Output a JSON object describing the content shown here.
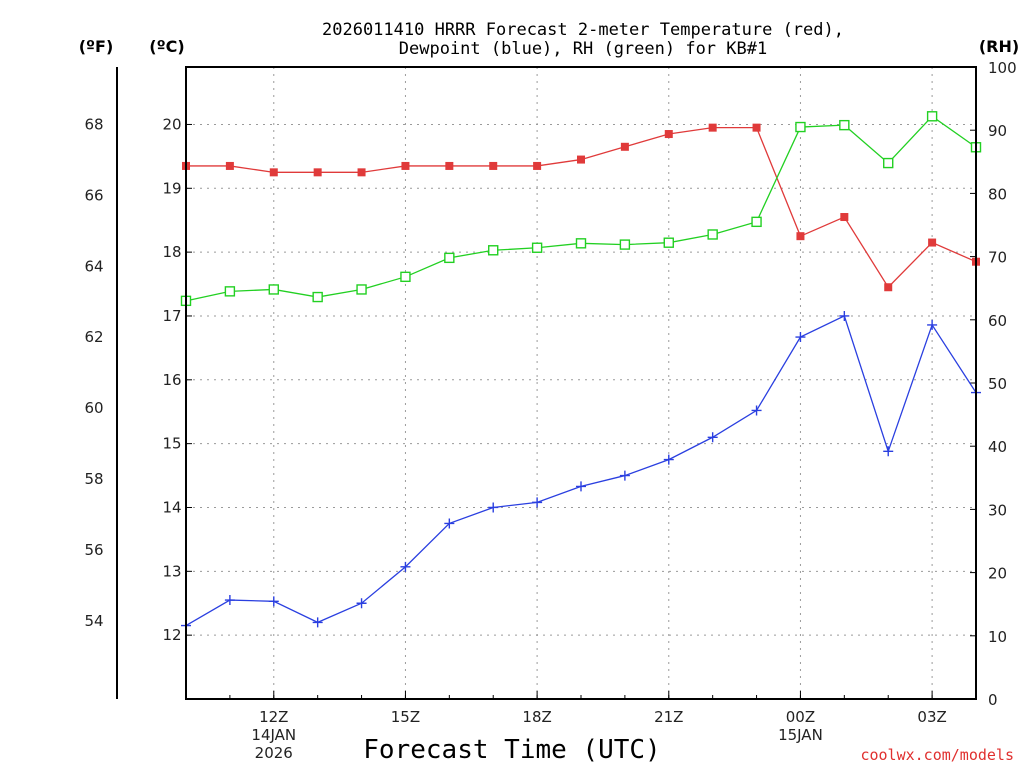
{
  "chart_data": {
    "type": "line",
    "title_lines": [
      "2026011410 HRRR Forecast 2-meter Temperature (red),",
      "Dewpoint (blue), RH (green) for KB#1"
    ],
    "units": {
      "fahrenheit": "(ºF)",
      "celsius": "(ºC)",
      "rh": "(RH)"
    },
    "xlabel": "Forecast Time (UTC)",
    "credit": "coolwx.com/models",
    "x_hours": [
      10,
      11,
      12,
      13,
      14,
      15,
      16,
      17,
      18,
      19,
      20,
      21,
      22,
      23,
      24,
      25,
      26,
      27,
      28
    ],
    "xlim": [
      10,
      28
    ],
    "x_ticks": [
      {
        "hour": 12,
        "lines": [
          "12Z",
          "14JAN",
          "2026"
        ]
      },
      {
        "hour": 15,
        "lines": [
          "15Z"
        ]
      },
      {
        "hour": 18,
        "lines": [
          "18Z"
        ]
      },
      {
        "hour": 21,
        "lines": [
          "21Z"
        ]
      },
      {
        "hour": 24,
        "lines": [
          "00Z",
          "15JAN"
        ]
      },
      {
        "hour": 27,
        "lines": [
          "03Z"
        ]
      }
    ],
    "ylim_celsius": [
      11.0,
      20.9
    ],
    "celsius_ticks": [
      "12",
      "13",
      "14",
      "15",
      "16",
      "17",
      "18",
      "19",
      "20"
    ],
    "fahrenheit_ticks": [
      "54",
      "56",
      "58",
      "60",
      "62",
      "64",
      "66",
      "68"
    ],
    "ylim_rh": [
      0,
      100
    ],
    "rh_ticks": [
      "0",
      "10",
      "20",
      "30",
      "40",
      "50",
      "60",
      "70",
      "80",
      "90",
      "100"
    ],
    "series": [
      {
        "name": "Temperature",
        "color": "#e03a3a",
        "marker": "filled-square",
        "values": [
          19.35,
          19.35,
          19.25,
          19.25,
          19.25,
          19.35,
          19.35,
          19.35,
          19.35,
          19.45,
          19.65,
          19.85,
          19.95,
          19.95,
          18.25,
          18.55,
          17.45,
          18.15,
          17.85
        ]
      },
      {
        "name": "Dewpoint",
        "color": "#2a3fe0",
        "marker": "plus",
        "values": [
          12.15,
          12.55,
          12.53,
          12.2,
          12.5,
          13.07,
          13.75,
          14.0,
          14.08,
          14.33,
          14.5,
          14.75,
          15.1,
          15.52,
          16.67,
          17.0,
          14.88,
          16.86,
          15.8
        ]
      },
      {
        "name": "RH",
        "color": "#22d022",
        "marker": "open-square",
        "values": [
          63.0,
          64.5,
          64.8,
          63.6,
          64.8,
          66.8,
          69.8,
          71.0,
          71.4,
          72.1,
          71.9,
          72.2,
          73.5,
          75.5,
          90.5,
          90.8,
          84.8,
          92.2,
          87.3
        ]
      }
    ]
  }
}
